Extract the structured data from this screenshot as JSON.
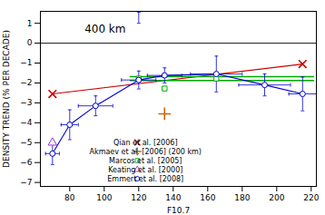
{
  "chart_data": {
    "type": "line",
    "annotations": [
      "400 km"
    ],
    "xlabel": "F10.7",
    "ylabel": "DENSITY TREND (% PER DECADE)",
    "xlim": [
      63,
      223
    ],
    "ylim": [
      -7.2,
      1.6
    ],
    "xticks": [
      80,
      100,
      120,
      140,
      160,
      180,
      200,
      220
    ],
    "yticks": [
      -7,
      -6,
      -5,
      -4,
      -3,
      -2,
      -1,
      0,
      1
    ],
    "grid": false,
    "legend": "lower left",
    "series": [
      {
        "name": "Qian et al. [2006]",
        "type": "line",
        "color": "#cc0000",
        "marker": "x",
        "line_style": "solid",
        "x": [
          70,
          215
        ],
        "values": [
          -2.55,
          -1.05
        ]
      },
      {
        "name": "Akmaev et al. [2006] (200 km)",
        "type": "scatter",
        "color": "#cc6600",
        "marker": "+",
        "x": [
          135
        ],
        "values": [
          -3.55
        ]
      },
      {
        "name": "Marcos et al. [2005]",
        "type": "scatter",
        "color": "#00aa00",
        "marker": "square",
        "x": [
          120,
          135,
          165
        ],
        "values": [
          -1.78,
          -2.28,
          -1.78
        ],
        "hlines": [
          -1.68,
          -1.88
        ],
        "hline_x": [
          115,
          222
        ]
      },
      {
        "name": "Keating et al. [2000]",
        "type": "scatter",
        "color": "#9933cc",
        "marker": "triangle",
        "x": [
          70
        ],
        "values": [
          -5.0
        ]
      },
      {
        "name": "Emmert et al. [2008]",
        "type": "line",
        "color": "#0000cc",
        "marker": "circle",
        "line_style": "solid",
        "x": [
          70,
          80,
          95,
          120,
          135,
          165,
          193,
          215
        ],
        "values": [
          -5.55,
          -4.1,
          -3.15,
          -1.85,
          -1.62,
          -1.55,
          -2.1,
          -2.55
        ],
        "xerr": [
          4,
          5,
          10,
          10,
          10,
          15,
          15,
          8
        ],
        "yerr_lo": [
          0.55,
          0.75,
          0.5,
          0.45,
          0.38,
          0.9,
          0.55,
          0.85
        ],
        "yerr_hi": [
          0.55,
          0.75,
          0.5,
          0.45,
          0.38,
          0.9,
          0.55,
          0.85
        ]
      }
    ],
    "reference_lines": [
      {
        "y": 0,
        "color": "#000000"
      }
    ],
    "error_bars": [
      {
        "x": 120,
        "y": 1.0,
        "yerr_lo": 0.0,
        "yerr_hi": 0.55,
        "color": "#0000cc"
      }
    ]
  }
}
